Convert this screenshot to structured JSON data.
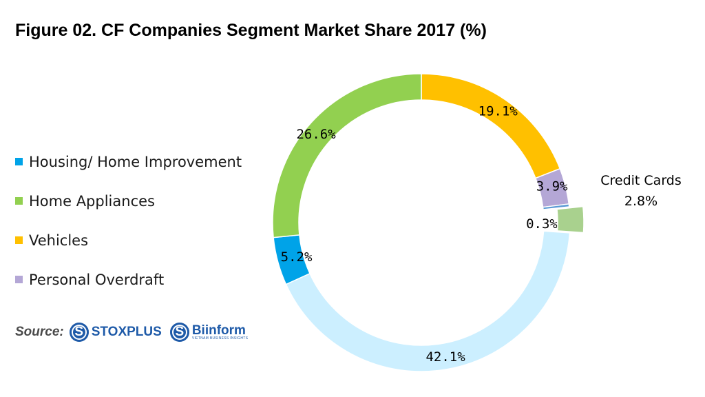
{
  "title": "Figure 02. CF Companies Segment Market Share 2017 (%)",
  "legend": [
    {
      "label": "Housing/ Home Improvement",
      "color": "#00a3e8"
    },
    {
      "label": "Home Appliances",
      "color": "#92d050"
    },
    {
      "label": "Vehicles",
      "color": "#ffc000"
    },
    {
      "label": "Personal Overdraft",
      "color": "#b4a7d6"
    }
  ],
  "source": {
    "label": "Source:",
    "logos": [
      {
        "name": "STOXPLUS",
        "icon": "stoxplus-logo-icon"
      },
      {
        "name": "Biinform",
        "tagline": "VIETNAM BUSINESS INSIGHTS",
        "icon": "biinform-logo-icon"
      }
    ]
  },
  "chart_data": {
    "type": "pie",
    "donut": true,
    "title": "Figure 02. CF Companies Segment Market Share 2017 (%)",
    "slices": [
      {
        "label": "Vehicles",
        "value": 19.1,
        "text": "19.1%",
        "color": "#ffc000"
      },
      {
        "label": "Personal Overdraft",
        "value": 3.9,
        "text": "3.9%",
        "color": "#b4a7d6"
      },
      {
        "label": "",
        "value": 0.3,
        "text": "0.3%",
        "color": "#5b9bd5"
      },
      {
        "label": "Credit Cards",
        "value": 2.8,
        "text": "2.8%",
        "color": "#a9d18e",
        "exploded": true
      },
      {
        "label": "",
        "value": 42.1,
        "text": "42.1%",
        "color": "#ccefff"
      },
      {
        "label": "Housing/ Home Improvement",
        "value": 5.2,
        "text": "5.2%",
        "color": "#00a3e8"
      },
      {
        "label": "Home Appliances",
        "value": 26.6,
        "text": "26.6%",
        "color": "#92d050"
      }
    ]
  }
}
